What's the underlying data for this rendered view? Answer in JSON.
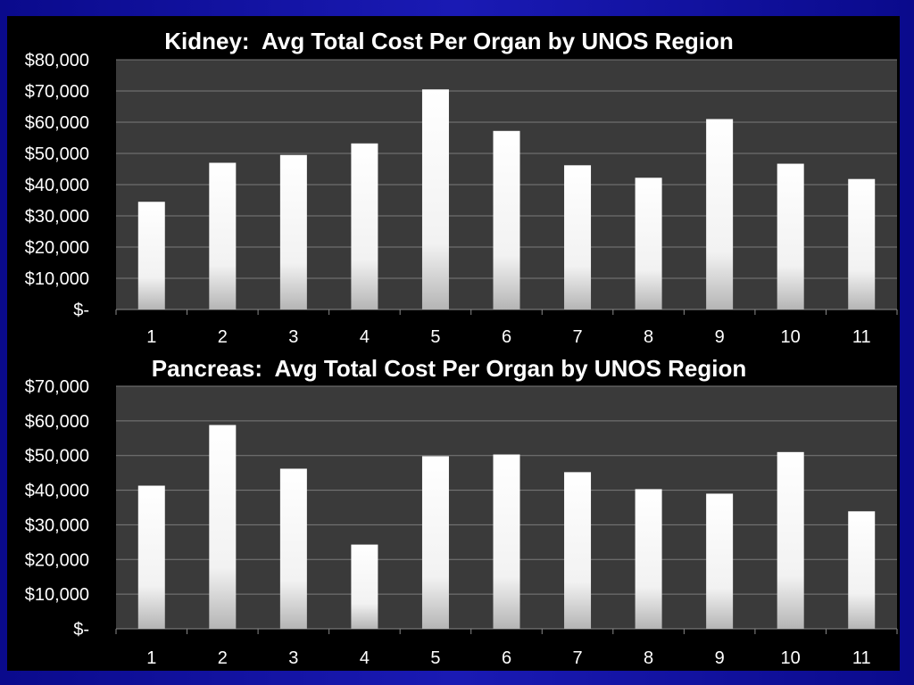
{
  "colors": {
    "background": "#1010a0",
    "panel": "#000000",
    "plot_area": "#3a3a3a",
    "bar_light": "#ffffff",
    "bar_shadow": "#bdbdbd",
    "text": "#ffffff"
  },
  "chart_data": [
    {
      "type": "bar",
      "title": "Kidney:  Avg Total Cost Per Organ by UNOS Region",
      "xlabel": "",
      "ylabel": "",
      "categories": [
        "1",
        "2",
        "3",
        "4",
        "5",
        "6",
        "7",
        "8",
        "9",
        "10",
        "11"
      ],
      "values": [
        34500,
        47000,
        49500,
        53200,
        70500,
        57200,
        46200,
        42200,
        61000,
        46700,
        41800
      ],
      "ylim": [
        0,
        80000
      ],
      "yticks": [
        0,
        10000,
        20000,
        30000,
        40000,
        50000,
        60000,
        70000,
        80000
      ],
      "ytick_labels": [
        "$-",
        "$10,000",
        "$20,000",
        "$30,000",
        "$40,000",
        "$50,000",
        "$60,000",
        "$70,000",
        "$80,000"
      ],
      "grid": true,
      "legend": "none"
    },
    {
      "type": "bar",
      "title": "Pancreas:  Avg Total Cost Per Organ by UNOS Region",
      "xlabel": "",
      "ylabel": "",
      "categories": [
        "1",
        "2",
        "3",
        "4",
        "5",
        "6",
        "7",
        "8",
        "9",
        "10",
        "11"
      ],
      "values": [
        41300,
        58800,
        46200,
        24300,
        49800,
        50300,
        45200,
        40300,
        39000,
        51000,
        33900
      ],
      "ylim": [
        0,
        70000
      ],
      "yticks": [
        0,
        10000,
        20000,
        30000,
        40000,
        50000,
        60000,
        70000
      ],
      "ytick_labels": [
        "$-",
        "$10,000",
        "$20,000",
        "$30,000",
        "$40,000",
        "$50,000",
        "$60,000",
        "$70,000"
      ],
      "grid": true,
      "legend": "none"
    }
  ]
}
